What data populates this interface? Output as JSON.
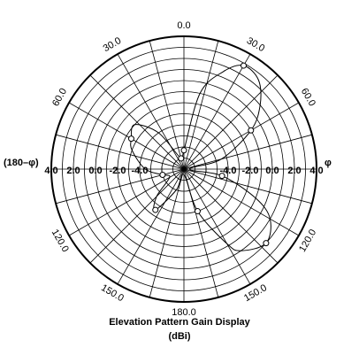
{
  "chart_data": {
    "type": "polar",
    "title": "Elevation Pattern Gain Display",
    "subtitle": "(dBi)",
    "angle_labels": [
      {
        "angle": 0,
        "text": "0.0"
      },
      {
        "angle": 30,
        "text": "30.0"
      },
      {
        "angle": 60,
        "text": "60.0"
      },
      {
        "angle": 120,
        "text": "120.0"
      },
      {
        "angle": 150,
        "text": "150.0"
      },
      {
        "angle": 180,
        "text": "180.0"
      },
      {
        "angle": -30,
        "text": "30.0"
      },
      {
        "angle": -60,
        "text": "60.0"
      },
      {
        "angle": -120,
        "text": "120.0"
      },
      {
        "angle": -150,
        "text": "150.0"
      }
    ],
    "left_axis_label": "(180–φ)",
    "right_axis_label": "φ",
    "gain_tick_labels": [
      "4.0",
      "2.0",
      "0.0",
      "-2.0",
      "-4.0",
      "-4.0",
      "-2.0",
      "0.0",
      "2.0",
      "4.0"
    ],
    "gain_range": [
      -8,
      4
    ],
    "ring_count": 12,
    "spoke_step_deg": 15,
    "series": [
      {
        "markers": true,
        "points": [
          {
            "angle": 0,
            "gain": -6.3
          },
          {
            "angle": 12,
            "gain": -1.0
          },
          {
            "angle": 22,
            "gain": 1.5
          },
          {
            "angle": 30,
            "gain": 2.8
          },
          {
            "angle": 40,
            "gain": 2.5
          },
          {
            "angle": 50,
            "gain": 1.0
          },
          {
            "angle": 60,
            "gain": -1.0
          },
          {
            "angle": 75,
            "gain": -4.5
          },
          {
            "angle": 90,
            "gain": -7.5
          },
          {
            "angle": 100,
            "gain": -4.5
          },
          {
            "angle": 112,
            "gain": -1.0
          },
          {
            "angle": 120,
            "gain": 1.0
          },
          {
            "angle": 132,
            "gain": 2.0
          },
          {
            "angle": 145,
            "gain": 1.0
          },
          {
            "angle": 150,
            "gain": -0.2
          },
          {
            "angle": 162,
            "gain": -4.0
          },
          {
            "angle": 180,
            "gain": -7.5
          },
          {
            "angle": 200,
            "gain": -6.0
          },
          {
            "angle": 215,
            "gain": -3.5
          },
          {
            "angle": 225,
            "gain": -4.5
          },
          {
            "angle": 240,
            "gain": -6.5
          },
          {
            "angle": 255,
            "gain": -6.0
          },
          {
            "angle": 270,
            "gain": -4.5
          },
          {
            "angle": 290,
            "gain": -3.0
          },
          {
            "angle": 300,
            "gain": -2.5
          },
          {
            "angle": 312,
            "gain": -2.0
          },
          {
            "angle": 325,
            "gain": -4.0
          },
          {
            "angle": 345,
            "gain": -7.0
          }
        ]
      }
    ]
  }
}
